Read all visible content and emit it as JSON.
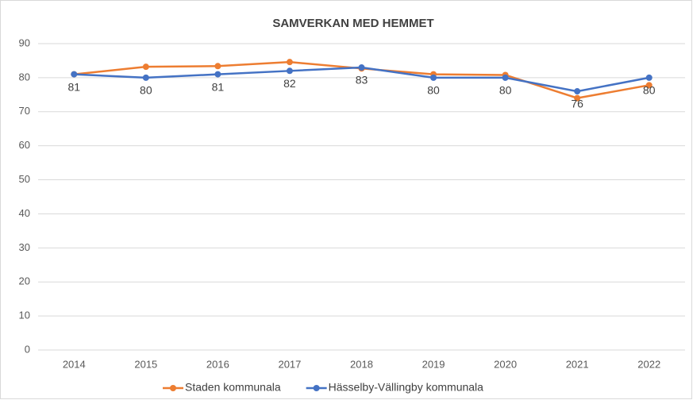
{
  "chart_data": {
    "type": "line",
    "title": "SAMVERKAN MED HEMMET",
    "categories": [
      "2014",
      "2015",
      "2016",
      "2017",
      "2018",
      "2019",
      "2020",
      "2021",
      "2022"
    ],
    "series": [
      {
        "name": "Staden kommunala",
        "color": "#ed7d31",
        "values": [
          81,
          83.2,
          83.4,
          84.6,
          82.7,
          81,
          80.8,
          74,
          77.8
        ]
      },
      {
        "name": "Hässelby-Vällingby kommunala",
        "color": "#4472c4",
        "values": [
          81,
          80,
          81,
          82,
          83,
          80,
          80,
          76,
          80
        ],
        "data_labels": true
      }
    ],
    "ylim": [
      0,
      90
    ],
    "yticks": [
      0,
      10,
      20,
      30,
      40,
      50,
      60,
      70,
      80,
      90
    ],
    "grid": true,
    "legend": "bottom"
  }
}
